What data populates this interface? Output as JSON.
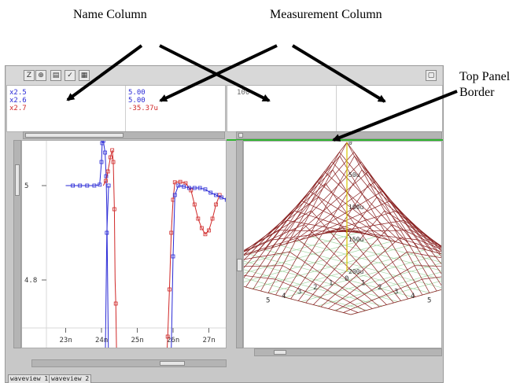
{
  "callouts": {
    "name_column": "Name Column",
    "measurement_column": "Measurement Column",
    "top_panel_border_1": "Top Panel",
    "top_panel_border_2": "Border"
  },
  "colors": {
    "series_1": "#2a2ad6",
    "series_2": "#2a2ad6",
    "series_3": "#d02828",
    "surface": "#8a2222",
    "panel_border": "#2fb52f",
    "axis_marker": "#d8c400"
  },
  "toolbar": {
    "icons": [
      "zoom-icon",
      "crosshair-icon",
      "table-icon",
      "checkmark-icon",
      "grid-icon",
      "window-icon"
    ]
  },
  "names": [
    {
      "label": "x2.5",
      "color": "#2a2ad6"
    },
    {
      "label": "x2.6",
      "color": "#2a2ad6"
    },
    {
      "label": "x2.7",
      "color": "#d02828"
    }
  ],
  "measurements": [
    {
      "value": "5.00",
      "color": "#2a2ad6"
    },
    {
      "value": "5.00",
      "color": "#2a2ad6"
    },
    {
      "value": "-35.37u",
      "color": "#d02828"
    }
  ],
  "right_panel": {
    "top_value": "100"
  },
  "left_plot": {
    "y_ticks": [
      "5",
      "4.8"
    ],
    "x_ticks": [
      "23n",
      "24n",
      "25n",
      "26n",
      "27n"
    ]
  },
  "surface_plot": {
    "z_labels": [
      "0",
      "50u",
      "100u",
      "150u",
      "200u"
    ],
    "x_axis_labels": [
      "5",
      "4",
      "3",
      "2",
      "1",
      "0",
      "1",
      "2",
      "3",
      "4",
      "5"
    ]
  },
  "tabs": [
    {
      "label": "waveview 1"
    },
    {
      "label": "waveview 2"
    }
  ]
}
